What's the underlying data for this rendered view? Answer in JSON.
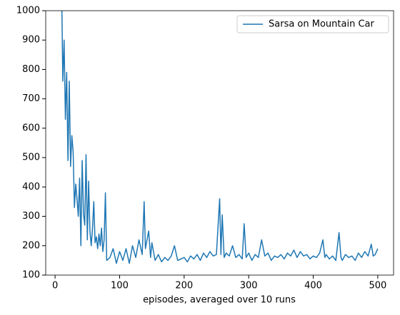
{
  "chart_data": {
    "type": "line",
    "xlabel": "episodes, averaged over 10 runs",
    "xlim": [
      -14.5,
      524.5
    ],
    "ylim": [
      100,
      1000
    ],
    "xticks": [
      0,
      100,
      200,
      300,
      400,
      500
    ],
    "yticks": [
      100,
      200,
      300,
      400,
      500,
      600,
      700,
      800,
      900,
      1000
    ],
    "legend": "upper right",
    "x": [
      10,
      12,
      14,
      16,
      18,
      20,
      22,
      24,
      26,
      28,
      30,
      32,
      34,
      36,
      38,
      40,
      42,
      44,
      46,
      48,
      50,
      52,
      54,
      56,
      58,
      60,
      62,
      64,
      66,
      68,
      70,
      72,
      74,
      76,
      78,
      80,
      85,
      90,
      95,
      100,
      105,
      110,
      115,
      120,
      125,
      130,
      135,
      138,
      140,
      145,
      148,
      150,
      155,
      160,
      165,
      170,
      175,
      180,
      185,
      190,
      195,
      200,
      205,
      210,
      215,
      220,
      225,
      230,
      235,
      240,
      245,
      250,
      255,
      257,
      259,
      262,
      265,
      270,
      275,
      280,
      285,
      290,
      293,
      296,
      300,
      305,
      310,
      315,
      320,
      325,
      330,
      335,
      340,
      345,
      350,
      355,
      360,
      365,
      370,
      375,
      380,
      385,
      390,
      395,
      400,
      405,
      410,
      415,
      418,
      420,
      425,
      430,
      435,
      440,
      443,
      445,
      450,
      455,
      460,
      465,
      470,
      475,
      480,
      485,
      490,
      493,
      496,
      500
    ],
    "series": [
      {
        "name": "Sarsa on Mountain Car",
        "color": "#1f77b4",
        "values": [
          1100,
          760,
          900,
          630,
          790,
          490,
          760,
          470,
          575,
          520,
          330,
          410,
          360,
          300,
          430,
          200,
          490,
          310,
          270,
          510,
          220,
          420,
          250,
          200,
          260,
          350,
          210,
          230,
          190,
          240,
          200,
          260,
          180,
          220,
          380,
          150,
          160,
          190,
          140,
          180,
          150,
          190,
          140,
          200,
          160,
          220,
          170,
          350,
          190,
          250,
          160,
          210,
          150,
          170,
          145,
          160,
          150,
          165,
          200,
          150,
          155,
          160,
          145,
          165,
          155,
          170,
          150,
          175,
          160,
          180,
          165,
          170,
          360,
          170,
          305,
          160,
          175,
          165,
          200,
          160,
          170,
          155,
          275,
          160,
          175,
          150,
          170,
          160,
          220,
          165,
          175,
          150,
          165,
          160,
          170,
          155,
          175,
          165,
          185,
          160,
          180,
          165,
          170,
          155,
          165,
          160,
          175,
          220,
          160,
          170,
          155,
          165,
          150,
          245,
          160,
          150,
          170,
          160,
          165,
          150,
          175,
          160,
          180,
          165,
          205,
          165,
          170,
          190
        ]
      }
    ]
  }
}
